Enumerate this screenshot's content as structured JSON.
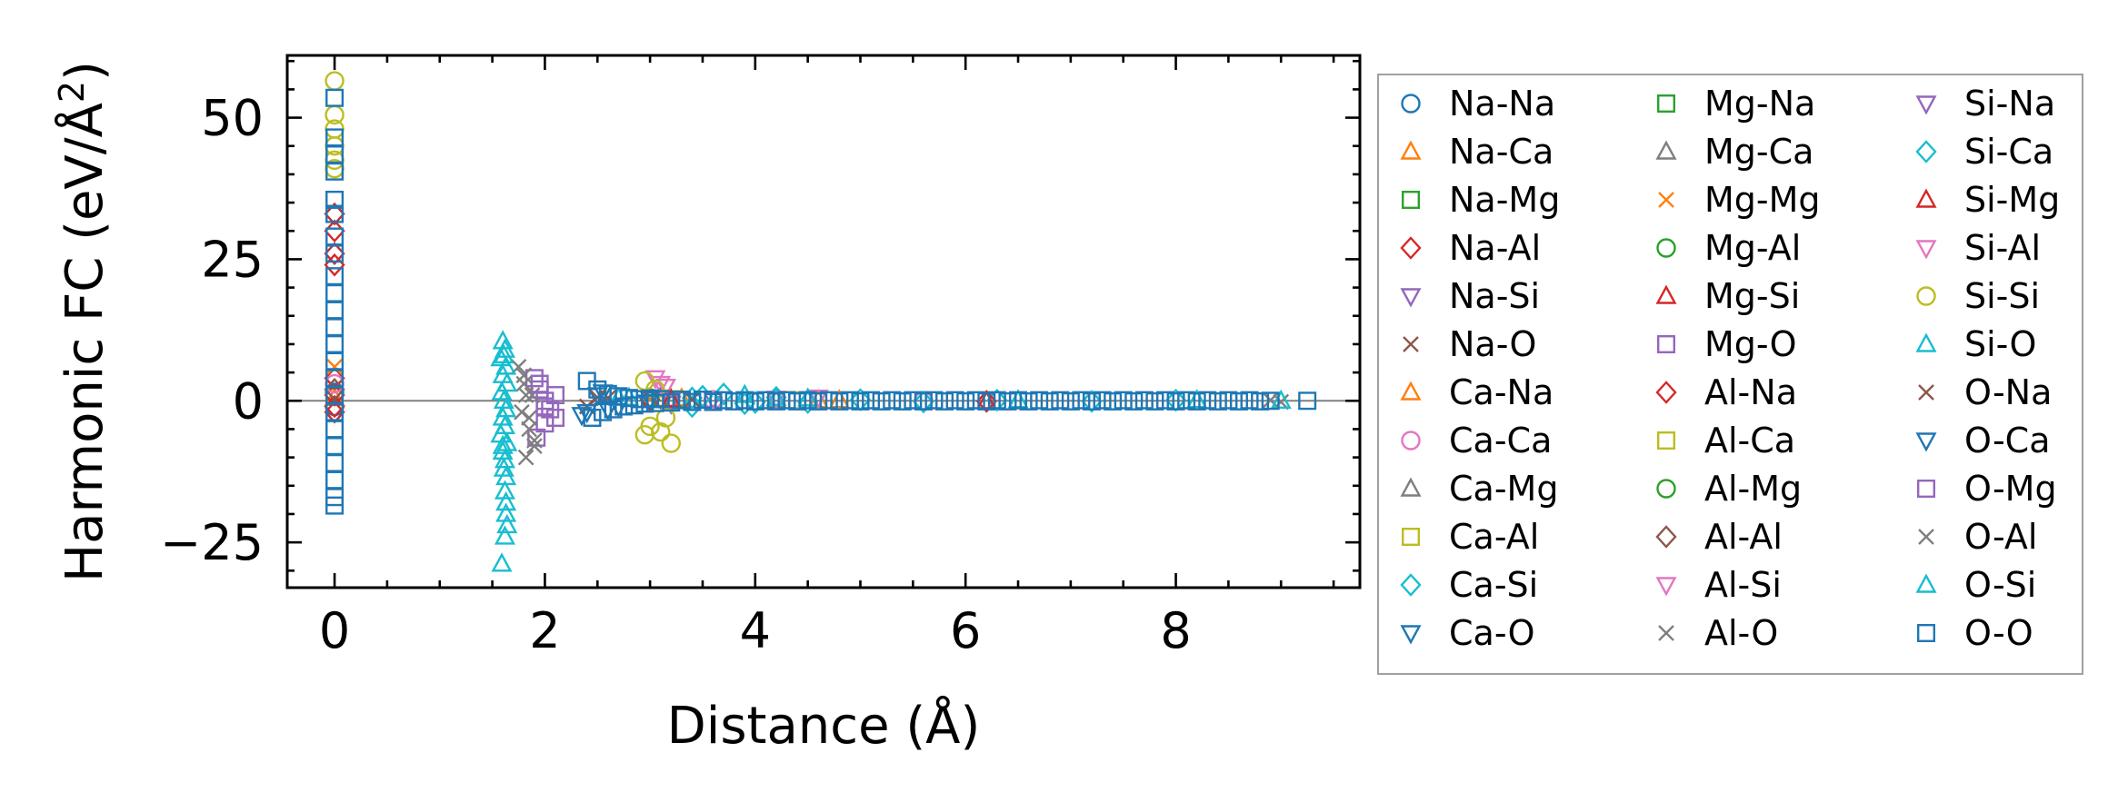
{
  "chart_data": {
    "type": "scatter",
    "title": "",
    "xlabel": "Distance (Å)",
    "ylabel_main": "Harmonic FC (eV/Å",
    "ylabel_sup": "2",
    "ylabel_close": ")",
    "xlim": [
      -0.45,
      9.75
    ],
    "ylim": [
      -33,
      61
    ],
    "xticks": [
      0,
      2,
      4,
      6,
      8
    ],
    "xtick_labels": [
      "0",
      "2",
      "4",
      "6",
      "8"
    ],
    "yticks": [
      -25,
      0,
      25,
      50
    ],
    "ytick_labels": [
      "−25",
      "0",
      "25",
      "50"
    ],
    "grid": false,
    "legend_position": "outside-right",
    "legend_columns": 3,
    "zero_line_color": "#808080",
    "series": [
      {
        "name": "Na-Na",
        "marker": "circle",
        "color": "#1f77b4",
        "points": [
          [
            0.0,
            1.5
          ],
          [
            0.0,
            -1.0
          ]
        ]
      },
      {
        "name": "Na-Ca",
        "marker": "triangle-up",
        "color": "#ff7f0e",
        "points": [
          [
            0.0,
            0.5
          ],
          [
            3.2,
            0.2
          ],
          [
            4.6,
            0.1
          ]
        ]
      },
      {
        "name": "Na-Mg",
        "marker": "square",
        "color": "#2ca02c",
        "points": [
          [
            0.0,
            0.8
          ],
          [
            3.3,
            0.1
          ]
        ]
      },
      {
        "name": "Na-Al",
        "marker": "diamond",
        "color": "#d62728",
        "points": [
          [
            0.0,
            33
          ],
          [
            0.0,
            30
          ],
          [
            0.0,
            26
          ],
          [
            0.0,
            24
          ],
          [
            0.0,
            4
          ],
          [
            0.0,
            1
          ],
          [
            0.0,
            -1
          ],
          [
            0.0,
            -2
          ]
        ]
      },
      {
        "name": "Na-Si",
        "marker": "triangle-down",
        "color": "#9467bd",
        "points": [
          [
            3.2,
            -0.5
          ],
          [
            3.6,
            0.3
          ]
        ]
      },
      {
        "name": "Na-O",
        "marker": "x",
        "color": "#8c564b",
        "points": [
          [
            2.4,
            -1.0
          ],
          [
            2.6,
            0.5
          ]
        ]
      },
      {
        "name": "Ca-Na",
        "marker": "triangle-up",
        "color": "#ff7f0e",
        "points": [
          [
            3.3,
            0.4
          ],
          [
            4.8,
            0.1
          ]
        ]
      },
      {
        "name": "Ca-Ca",
        "marker": "circle",
        "color": "#e377c2",
        "points": [
          [
            0.0,
            3.0
          ],
          [
            3.6,
            0.2
          ],
          [
            5.6,
            0.05
          ]
        ]
      },
      {
        "name": "Ca-Mg",
        "marker": "triangle-up",
        "color": "#7f7f7f",
        "points": [
          [
            3.0,
            0.3
          ],
          [
            4.2,
            0.1
          ]
        ]
      },
      {
        "name": "Ca-Al",
        "marker": "square",
        "color": "#bcbd22",
        "points": [
          [
            3.1,
            0.4
          ],
          [
            4.4,
            0.1
          ]
        ]
      },
      {
        "name": "Ca-Si",
        "marker": "diamond",
        "color": "#17becf",
        "points": [
          [
            3.4,
            -1.0
          ],
          [
            3.5,
            0.8
          ],
          [
            3.7,
            1.2
          ],
          [
            3.9,
            -0.5
          ],
          [
            4.2,
            0.6
          ],
          [
            4.5,
            -0.3
          ],
          [
            5.0,
            0.2
          ],
          [
            5.6,
            -0.2
          ],
          [
            6.3,
            0.1
          ],
          [
            7.2,
            -0.1
          ],
          [
            8.0,
            0.1
          ]
        ]
      },
      {
        "name": "Ca-O",
        "marker": "triangle-down",
        "color": "#1f77b4",
        "points": [
          [
            2.35,
            -2.5
          ],
          [
            2.5,
            1.0
          ],
          [
            2.6,
            -1.5
          ]
        ]
      },
      {
        "name": "Mg-Na",
        "marker": "square",
        "color": "#2ca02c",
        "points": [
          [
            3.3,
            0.2
          ]
        ]
      },
      {
        "name": "Mg-Ca",
        "marker": "triangle-up",
        "color": "#7f7f7f",
        "points": [
          [
            3.1,
            0.3
          ]
        ]
      },
      {
        "name": "Mg-Mg",
        "marker": "x",
        "color": "#ff7f0e",
        "points": [
          [
            0.0,
            6.0
          ],
          [
            3.0,
            0.3
          ]
        ]
      },
      {
        "name": "Mg-Al",
        "marker": "circle",
        "color": "#2ca02c",
        "points": [
          [
            3.0,
            0.5
          ]
        ]
      },
      {
        "name": "Mg-Si",
        "marker": "triangle-up",
        "color": "#d62728",
        "points": [
          [
            3.2,
            0.3
          ],
          [
            6.2,
            -0.1
          ]
        ]
      },
      {
        "name": "Mg-O",
        "marker": "square",
        "color": "#9467bd",
        "points": [
          [
            1.9,
            4.0
          ],
          [
            1.95,
            2.0
          ],
          [
            2.0,
            -1.0
          ],
          [
            2.1,
            -3.0
          ],
          [
            2.0,
            0.0
          ],
          [
            1.92,
            -6.5
          ]
        ]
      },
      {
        "name": "Al-Na",
        "marker": "diamond",
        "color": "#d62728",
        "points": [
          [
            3.0,
            0.2
          ],
          [
            6.2,
            -0.1
          ]
        ]
      },
      {
        "name": "Al-Ca",
        "marker": "square",
        "color": "#bcbd22",
        "points": [
          [
            3.2,
            0.3
          ]
        ]
      },
      {
        "name": "Al-Mg",
        "marker": "circle",
        "color": "#2ca02c",
        "points": [
          [
            3.1,
            0.4
          ]
        ]
      },
      {
        "name": "Al-Al",
        "marker": "diamond",
        "color": "#8c564b",
        "points": [
          [
            0.0,
            2.0
          ],
          [
            3.1,
            0.5
          ]
        ]
      },
      {
        "name": "Al-Si",
        "marker": "triangle-down",
        "color": "#e377c2",
        "points": [
          [
            3.05,
            4.0
          ],
          [
            3.15,
            2.5
          ],
          [
            4.2,
            0.4
          ],
          [
            4.6,
            0.6
          ]
        ]
      },
      {
        "name": "Al-O",
        "marker": "x",
        "color": "#7f7f7f",
        "points": [
          [
            1.75,
            6.0
          ],
          [
            1.8,
            3.0
          ],
          [
            1.78,
            -2.0
          ],
          [
            1.85,
            -5.0
          ],
          [
            1.9,
            -8.0
          ],
          [
            1.82,
            -10.0
          ],
          [
            1.88,
            1.0
          ]
        ]
      },
      {
        "name": "Si-Na",
        "marker": "triangle-down",
        "color": "#9467bd",
        "points": [
          [
            3.2,
            0.1
          ]
        ]
      },
      {
        "name": "Si-Ca",
        "marker": "diamond",
        "color": "#17becf",
        "points": [
          [
            3.4,
            0.5
          ],
          [
            4.0,
            -0.3
          ]
        ]
      },
      {
        "name": "Si-Mg",
        "marker": "triangle-up",
        "color": "#d62728",
        "points": [
          [
            3.2,
            0.2
          ]
        ]
      },
      {
        "name": "Si-Al",
        "marker": "triangle-down",
        "color": "#e377c2",
        "points": [
          [
            3.1,
            3.0
          ]
        ]
      },
      {
        "name": "Si-Si",
        "marker": "circle",
        "color": "#bcbd22",
        "points": [
          [
            0.0,
            56.5
          ],
          [
            0.0,
            50.5
          ],
          [
            0.0,
            48.0
          ],
          [
            0.0,
            45.0
          ],
          [
            0.0,
            42.5
          ],
          [
            0.0,
            41.0
          ],
          [
            2.95,
            3.5
          ],
          [
            3.05,
            2.0
          ],
          [
            3.0,
            -4.5
          ],
          [
            2.95,
            -6.0
          ],
          [
            3.1,
            -5.5
          ],
          [
            3.2,
            -7.5
          ],
          [
            3.15,
            -3.0
          ]
        ]
      },
      {
        "name": "Si-O",
        "marker": "triangle-up",
        "color": "#17becf",
        "points": [
          [
            1.6,
            10.5
          ],
          [
            1.62,
            9.0
          ],
          [
            1.58,
            7.5
          ],
          [
            1.63,
            6.0
          ],
          [
            1.6,
            4.5
          ],
          [
            1.64,
            3.0
          ],
          [
            1.59,
            1.5
          ],
          [
            1.61,
            0.0
          ],
          [
            1.63,
            -1.5
          ],
          [
            1.6,
            -3.0
          ],
          [
            1.62,
            -4.5
          ],
          [
            1.58,
            -6.0
          ],
          [
            1.64,
            -7.5
          ],
          [
            1.6,
            -9.0
          ],
          [
            1.62,
            -10.5
          ],
          [
            1.61,
            -12.0
          ],
          [
            1.63,
            -13.5
          ],
          [
            1.62,
            -16.0
          ],
          [
            1.63,
            -18.0
          ],
          [
            1.64,
            -22.0
          ],
          [
            1.62,
            -24.0
          ],
          [
            1.59,
            -28.8
          ],
          [
            2.8,
            0.5
          ],
          [
            3.9,
            1.0
          ],
          [
            4.2,
            0.5
          ]
        ]
      },
      {
        "name": "O-Na",
        "marker": "x",
        "color": "#8c564b",
        "points": [
          [
            2.5,
            0.6
          ],
          [
            3.4,
            0.2
          ]
        ]
      },
      {
        "name": "O-Ca",
        "marker": "triangle-down",
        "color": "#1f77b4",
        "points": [
          [
            2.4,
            -2.0
          ],
          [
            2.55,
            1.5
          ],
          [
            2.7,
            -1.0
          ],
          [
            3.0,
            0.3
          ]
        ]
      },
      {
        "name": "O-Mg",
        "marker": "square",
        "color": "#9467bd",
        "points": [
          [
            1.95,
            3.0
          ],
          [
            2.05,
            -1.5
          ],
          [
            2.1,
            1.0
          ],
          [
            2.0,
            -4.0
          ]
        ]
      },
      {
        "name": "O-Al",
        "marker": "x",
        "color": "#7f7f7f",
        "points": [
          [
            1.8,
            4.5
          ],
          [
            1.85,
            -3.0
          ],
          [
            1.9,
            -7.0
          ],
          [
            1.82,
            1.0
          ],
          [
            9.0,
            -0.2
          ],
          [
            8.9,
            0.1
          ]
        ]
      },
      {
        "name": "O-Si",
        "marker": "triangle-up",
        "color": "#17becf",
        "points": [
          [
            1.61,
            8.0
          ],
          [
            1.6,
            -8.0
          ],
          [
            1.63,
            -20.0
          ],
          [
            2.7,
            0.5
          ],
          [
            4.5,
            0.4
          ],
          [
            6.5,
            0.1
          ],
          [
            8.2,
            0.1
          ],
          [
            9.0,
            0.0
          ]
        ]
      },
      {
        "name": "O-O",
        "marker": "square",
        "color": "#1f77b4",
        "points": [
          [
            0.0,
            53.5
          ],
          [
            0.0,
            46.5
          ],
          [
            0.0,
            43.5
          ],
          [
            0.0,
            40.5
          ],
          [
            0.0,
            35.5
          ],
          [
            0.0,
            33.0
          ],
          [
            0.0,
            29.0
          ],
          [
            0.0,
            26.0
          ],
          [
            0.0,
            22.0
          ],
          [
            0.0,
            19.0
          ],
          [
            0.0,
            16.0
          ],
          [
            0.0,
            13.0
          ],
          [
            0.0,
            10.0
          ],
          [
            0.0,
            7.0
          ],
          [
            0.0,
            4.0
          ],
          [
            0.0,
            1.0
          ],
          [
            0.0,
            -2.0
          ],
          [
            0.0,
            -5.0
          ],
          [
            0.0,
            -8.0
          ],
          [
            0.0,
            -11.0
          ],
          [
            0.0,
            -14.0
          ],
          [
            0.0,
            -17.0
          ],
          [
            0.0,
            -18.5
          ],
          [
            2.4,
            3.5
          ],
          [
            2.45,
            -3.0
          ],
          [
            2.5,
            2.0
          ],
          [
            2.55,
            -2.0
          ],
          [
            2.6,
            1.2
          ],
          [
            2.65,
            -1.5
          ],
          [
            2.7,
            0.8
          ],
          [
            2.75,
            -1.0
          ],
          [
            2.8,
            0.5
          ],
          [
            2.85,
            -0.8
          ],
          [
            2.9,
            0.3
          ],
          [
            2.95,
            -0.5
          ],
          [
            3.0,
            0.4
          ],
          [
            3.05,
            -0.4
          ],
          [
            3.1,
            0.3
          ],
          [
            3.2,
            -0.3
          ],
          [
            3.3,
            0.2
          ],
          [
            3.4,
            -0.2
          ],
          [
            3.5,
            0.2
          ],
          [
            3.6,
            -0.2
          ],
          [
            3.7,
            0.1
          ],
          [
            3.8,
            -0.1
          ],
          [
            3.9,
            0.1
          ],
          [
            4.0,
            -0.1
          ],
          [
            4.1,
            0.1
          ],
          [
            4.2,
            -0.1
          ],
          [
            4.3,
            0.1
          ],
          [
            4.4,
            -0.1
          ],
          [
            4.5,
            0.1
          ],
          [
            4.6,
            -0.1
          ],
          [
            4.7,
            0.1
          ],
          [
            4.8,
            -0.1
          ],
          [
            4.9,
            0.1
          ],
          [
            5.0,
            -0.1
          ],
          [
            5.1,
            0.1
          ],
          [
            5.2,
            -0.1
          ],
          [
            5.3,
            0.1
          ],
          [
            5.4,
            -0.1
          ],
          [
            5.5,
            0.1
          ],
          [
            5.6,
            -0.1
          ],
          [
            5.7,
            0.1
          ],
          [
            5.8,
            -0.1
          ],
          [
            5.9,
            0.1
          ],
          [
            6.0,
            -0.1
          ],
          [
            6.1,
            0.1
          ],
          [
            6.2,
            -0.1
          ],
          [
            6.3,
            0.1
          ],
          [
            6.4,
            -0.1
          ],
          [
            6.5,
            0.1
          ],
          [
            6.6,
            -0.1
          ],
          [
            6.7,
            0.1
          ],
          [
            6.8,
            -0.1
          ],
          [
            6.9,
            0.1
          ],
          [
            7.0,
            -0.1
          ],
          [
            7.1,
            0.1
          ],
          [
            7.2,
            -0.1
          ],
          [
            7.3,
            0.1
          ],
          [
            7.4,
            -0.1
          ],
          [
            7.5,
            0.1
          ],
          [
            7.6,
            -0.1
          ],
          [
            7.7,
            0.1
          ],
          [
            7.8,
            -0.1
          ],
          [
            7.9,
            0.1
          ],
          [
            8.0,
            -0.1
          ],
          [
            8.1,
            0.1
          ],
          [
            8.2,
            -0.1
          ],
          [
            8.3,
            0.1
          ],
          [
            8.4,
            -0.1
          ],
          [
            8.5,
            0.1
          ],
          [
            8.6,
            -0.1
          ],
          [
            8.7,
            0.1
          ],
          [
            8.8,
            -0.1
          ],
          [
            8.9,
            0.0
          ],
          [
            9.25,
            0.0
          ]
        ]
      }
    ]
  }
}
